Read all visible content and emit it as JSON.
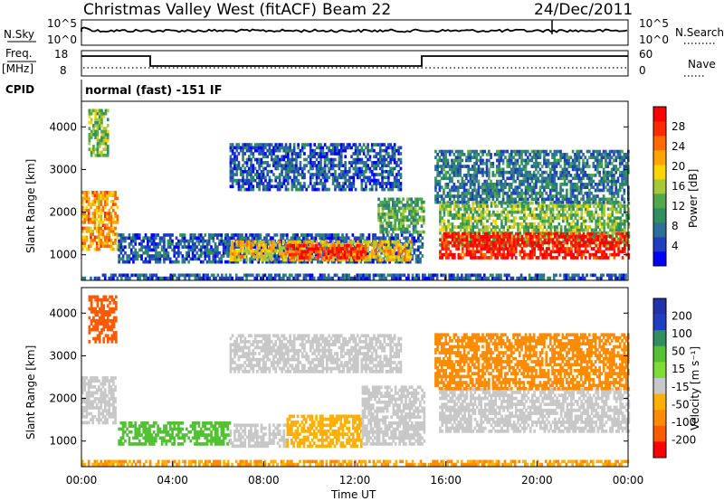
{
  "header": {
    "station": "Christmas Valley West (fitACF)",
    "beam": "Beam 22",
    "date": "24/Dec/2011"
  },
  "noise_panel": {
    "left_label": "N.Sky",
    "right_label": "N.Search",
    "ticks": [
      "10^5",
      "10^0"
    ]
  },
  "freq_panel": {
    "left_label_1": "Freq.",
    "left_label_2": "[MHz]",
    "right_label": "Nave",
    "left_ticks": [
      "18",
      "8"
    ],
    "right_ticks": [
      "60",
      "0"
    ]
  },
  "cpid": {
    "label": "CPID",
    "mode_text": "normal (fast) -151 IF"
  },
  "colors": {
    "power": [
      "#0000ff",
      "#1f3fbf",
      "#2e6f9a",
      "#2f8f5f",
      "#52a84a",
      "#a6c93a",
      "#ffd400",
      "#ffa500",
      "#ff6a00",
      "#ff2a00",
      "#ff0000"
    ],
    "velocity": [
      "#2233aa",
      "#1f3fbf",
      "#2f8f5f",
      "#52c234",
      "#7ddc3a",
      "#c8c8c8",
      "#ffb000",
      "#ff8c00",
      "#ff5a00",
      "#ff0000"
    ],
    "ground_scatter": "#b9b9b9"
  },
  "chart_data": [
    {
      "type": "heatmap",
      "name": "power",
      "ylabel": "Slant Range [km]",
      "yticks": [
        "1000",
        "2000",
        "3000",
        "4000"
      ],
      "ylim": [
        400,
        4600
      ],
      "xlim": [
        "00:00",
        "24:00"
      ],
      "colorbar": {
        "label": "Power [dB]",
        "ticks": [
          "4",
          "8",
          "12",
          "16",
          "20",
          "24",
          "28"
        ],
        "range": [
          0,
          32
        ]
      },
      "regions": [
        {
          "t0": 0.0,
          "t1": 1.6,
          "r0": 1100,
          "r1": 2500,
          "value": 22
        },
        {
          "t0": 0.3,
          "t1": 1.2,
          "r0": 3300,
          "r1": 4400,
          "value": 14
        },
        {
          "t0": 1.6,
          "t1": 15.0,
          "r0": 800,
          "r1": 1500,
          "value": 6
        },
        {
          "t0": 6.5,
          "t1": 14.5,
          "r0": 850,
          "r1": 1300,
          "value": 20
        },
        {
          "t0": 9.0,
          "t1": 12.5,
          "r0": 900,
          "r1": 1200,
          "value": 28
        },
        {
          "t0": 6.5,
          "t1": 14.0,
          "r0": 2500,
          "r1": 3600,
          "value": 6
        },
        {
          "t0": 13.0,
          "t1": 15.0,
          "r0": 1500,
          "r1": 2300,
          "value": 12
        },
        {
          "t0": 15.7,
          "t1": 24.0,
          "r0": 1200,
          "r1": 2200,
          "value": 14
        },
        {
          "t0": 15.7,
          "t1": 24.0,
          "r0": 900,
          "r1": 1500,
          "value": 30
        },
        {
          "t0": 15.5,
          "t1": 24.0,
          "r0": 2200,
          "r1": 3400,
          "value": 8
        },
        {
          "t0": 0.0,
          "t1": 24.0,
          "r0": 420,
          "r1": 520,
          "value": 6
        }
      ]
    },
    {
      "type": "heatmap",
      "name": "velocity",
      "ylabel": "Slant Range [km]",
      "yticks": [
        "1000",
        "2000",
        "3000",
        "4000"
      ],
      "ylim": [
        400,
        4600
      ],
      "xlim": [
        "00:00",
        "24:00"
      ],
      "xlabel": "Time UT",
      "xticks": [
        "00:00",
        "04:00",
        "08:00",
        "12:00",
        "16:00",
        "20:00",
        "00:00"
      ],
      "colorbar": {
        "label": "Velocity [m s⁻¹]",
        "ticks": [
          "200",
          "100",
          "50",
          "15",
          "-15",
          "-50",
          "-100",
          "-200"
        ]
      },
      "regions": [
        {
          "t0": 0.0,
          "t1": 1.5,
          "r0": 1400,
          "r1": 2500,
          "value": 0
        },
        {
          "t0": 0.3,
          "t1": 1.5,
          "r0": 3300,
          "r1": 4400,
          "value": -120
        },
        {
          "t0": 1.6,
          "t1": 6.5,
          "r0": 900,
          "r1": 1450,
          "value": 40
        },
        {
          "t0": 6.5,
          "t1": 9.0,
          "r0": 850,
          "r1": 1350,
          "value": 0
        },
        {
          "t0": 9.0,
          "t1": 12.3,
          "r0": 850,
          "r1": 1600,
          "value": -40
        },
        {
          "t0": 12.3,
          "t1": 15.0,
          "r0": 900,
          "r1": 2300,
          "value": 0
        },
        {
          "t0": 6.5,
          "t1": 14.0,
          "r0": 2600,
          "r1": 3500,
          "value": 0
        },
        {
          "t0": 15.7,
          "t1": 24.0,
          "r0": 1200,
          "r1": 2200,
          "value": 0
        },
        {
          "t0": 15.5,
          "t1": 24.0,
          "r0": 2200,
          "r1": 3500,
          "value": -60
        },
        {
          "t0": 0.0,
          "t1": 24.0,
          "r0": 420,
          "r1": 560,
          "value": -50
        }
      ]
    }
  ]
}
